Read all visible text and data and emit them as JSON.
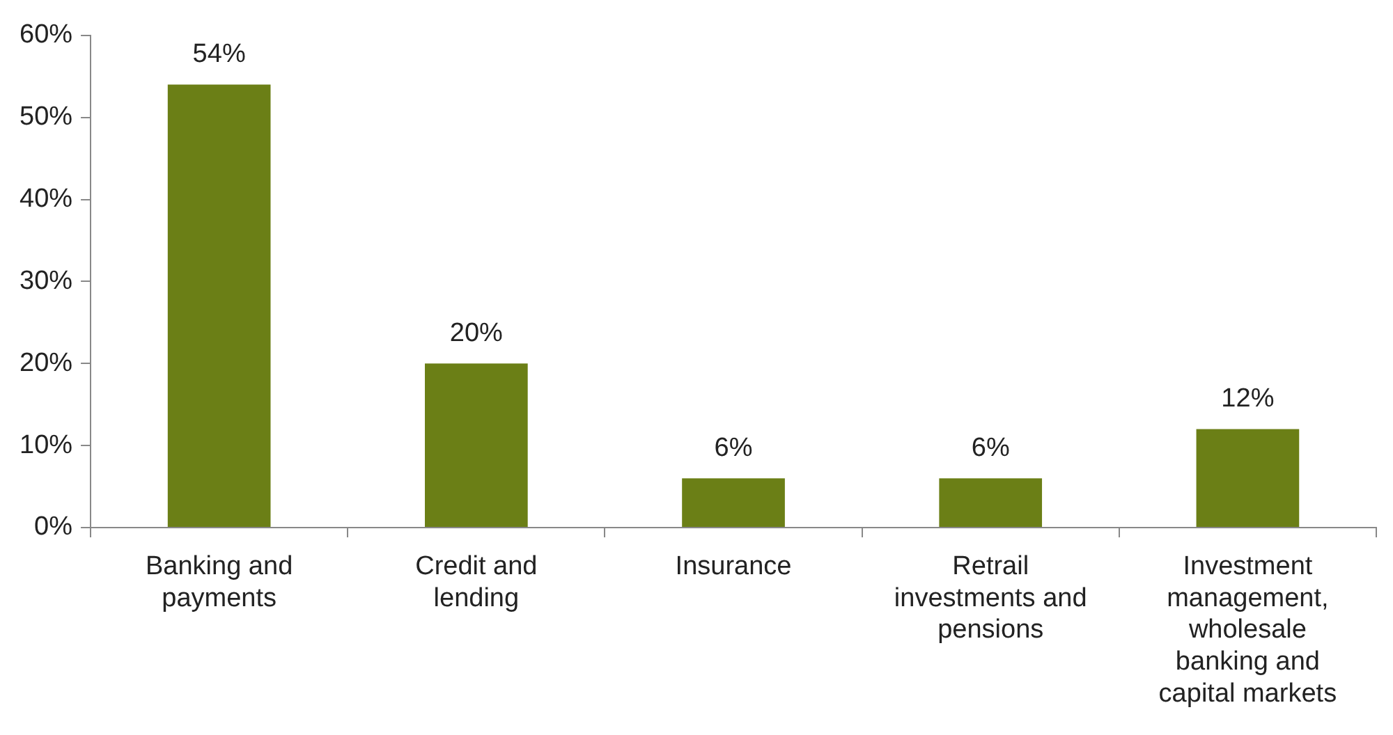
{
  "chart_data": {
    "type": "bar",
    "categories": [
      "Banking and payments",
      "Credit and lending",
      "Insurance",
      "Retrail investments and pensions",
      "Investment management, wholesale banking and capital markets"
    ],
    "values": [
      54,
      20,
      6,
      6,
      12
    ],
    "value_labels": [
      "54%",
      "20%",
      "6%",
      "6%",
      "12%"
    ],
    "color": "#6b7f16",
    "ylim": [
      0,
      60
    ],
    "yticks": [
      {
        "value": 0,
        "label": "0%"
      },
      {
        "value": 10,
        "label": "10%"
      },
      {
        "value": 20,
        "label": "20%"
      },
      {
        "value": 30,
        "label": "30%"
      },
      {
        "value": 40,
        "label": "40%"
      },
      {
        "value": 50,
        "label": "50%"
      },
      {
        "value": 60,
        "label": "60%"
      }
    ],
    "grid": false,
    "legend": false
  }
}
